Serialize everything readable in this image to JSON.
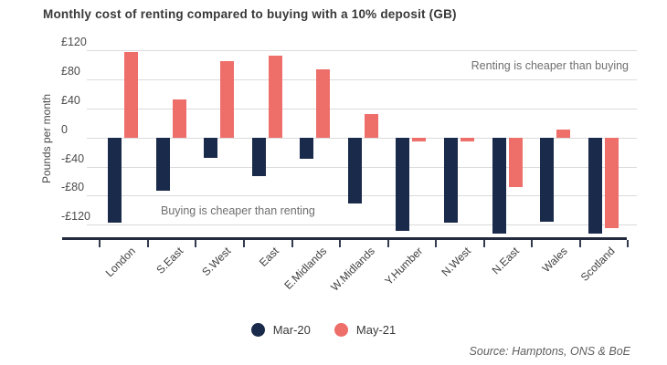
{
  "title": "Monthly cost of renting compared to buying with a 10% deposit (GB)",
  "chart_data": {
    "type": "bar",
    "title": "Monthly cost of renting compared to buying with a 10% deposit (GB)",
    "categories": [
      "London",
      "S.East",
      "S.West",
      "East",
      "E.Midlands",
      "W.Midlands",
      "Y.Humber",
      "N.West",
      "N.East",
      "Wales",
      "Scotland"
    ],
    "series": [
      {
        "name": "Mar-20",
        "color": "#1a2a4a",
        "values": [
          -118,
          -73,
          -28,
          -53,
          -29,
          -91,
          -129,
          -117,
          -133,
          -116,
          -133
        ]
      },
      {
        "name": "May-21",
        "color": "#ee6e6a",
        "values": [
          118,
          52,
          105,
          113,
          94,
          33,
          -6,
          -5,
          -68,
          11,
          -125
        ]
      }
    ],
    "xlabel": "",
    "ylabel": "Pounds per month",
    "ylim": [
      -140,
      132
    ],
    "grid": "horizontal",
    "yticks": [
      {
        "value": 120,
        "label": "£120"
      },
      {
        "value": 80,
        "label": "£80"
      },
      {
        "value": 40,
        "label": "£40"
      },
      {
        "value": 0,
        "label": "0"
      },
      {
        "value": -40,
        "label": "-£40"
      },
      {
        "value": -80,
        "label": "-£80"
      },
      {
        "value": -120,
        "label": "-£120"
      }
    ],
    "annotations": [
      {
        "text": "Renting is cheaper than buying",
        "position": "top-right"
      },
      {
        "text": "Buying is cheaper than renting",
        "position": "bottom-left"
      }
    ],
    "legend": [
      {
        "label": "Mar-20",
        "color": "#1a2a4a"
      },
      {
        "label": "May-21",
        "color": "#ee6e6a"
      }
    ],
    "legend_position": "bottom-center",
    "source": "Source: Hamptons, ONS & BoE"
  },
  "colors": {
    "mar20_navy": "#1a2a4a",
    "may21_salmon": "#ee6e6a",
    "gridline": "#dbdbdb",
    "axis_line": "#232a3e",
    "background": "#ffffff"
  }
}
